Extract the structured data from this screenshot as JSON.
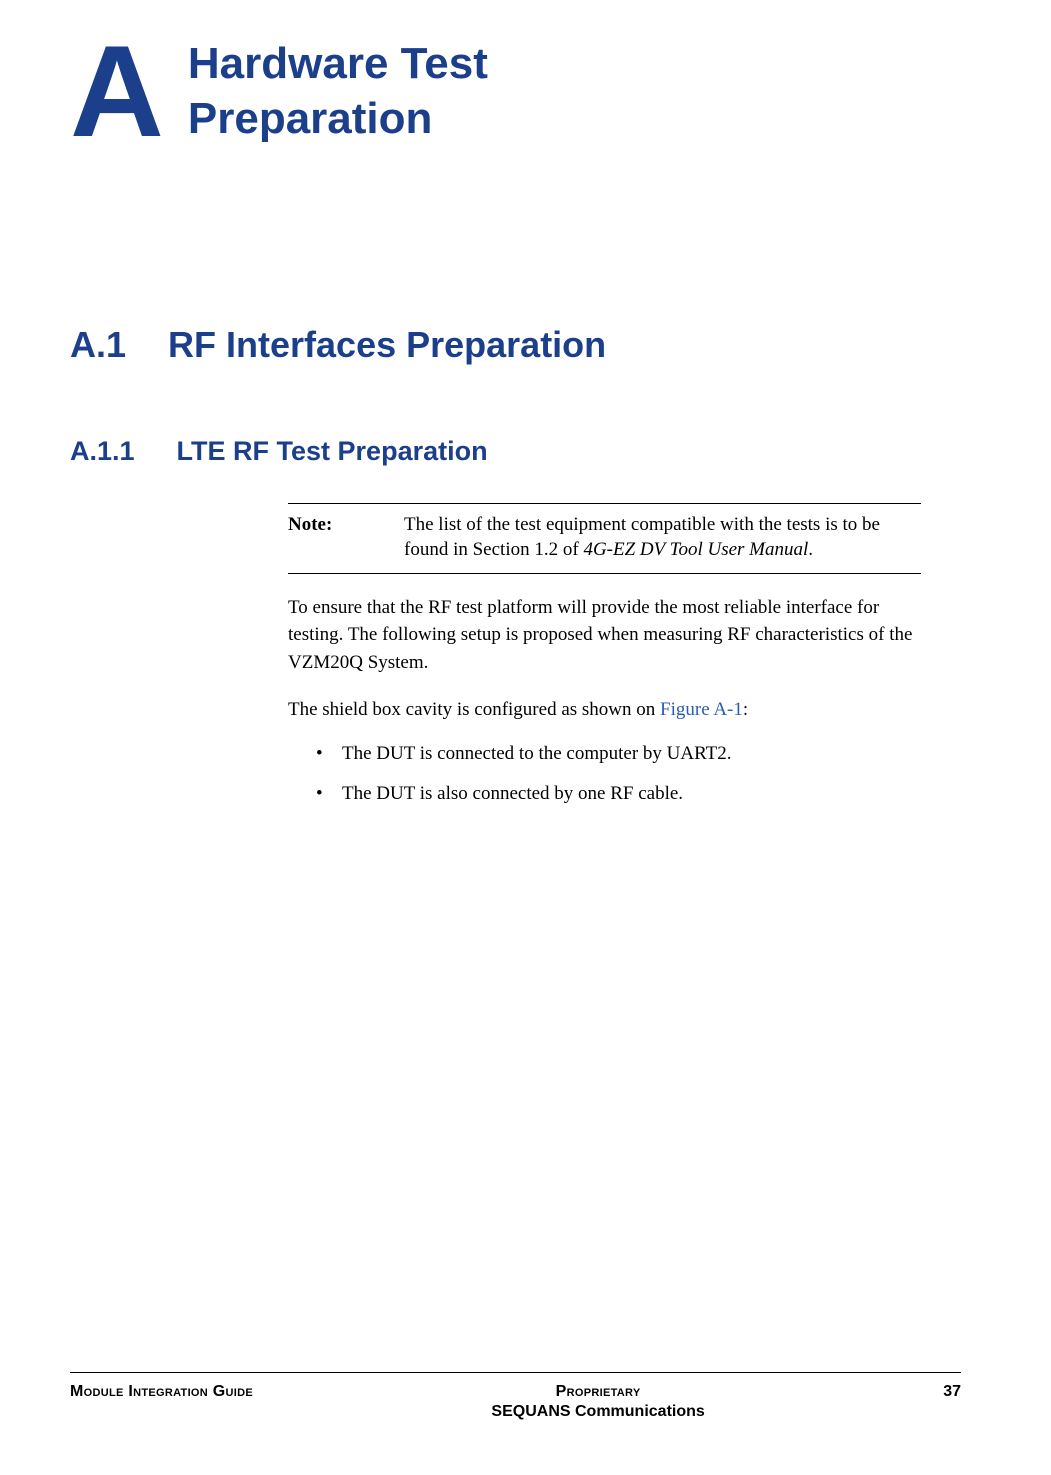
{
  "colors": {
    "heading": "#1b3f8b",
    "link": "#2a5db0",
    "text": "#000000",
    "background": "#ffffff",
    "rule": "#000000"
  },
  "typography": {
    "heading_font": "Verdana",
    "body_font": "Georgia",
    "footer_font": "Arial",
    "appendix_letter_size_pt": 98,
    "appendix_title_size_pt": 33,
    "h1_size_pt": 27,
    "h2_size_pt": 20,
    "body_size_pt": 14,
    "footer_size_pt": 12
  },
  "header": {
    "appendix_letter": "A",
    "appendix_title_line1": "Hardware Test",
    "appendix_title_line2": "Preparation"
  },
  "section_h1": {
    "number": "A.1",
    "title": "RF Interfaces Preparation"
  },
  "section_h2": {
    "number": "A.1.1",
    "title": "LTE RF Test Preparation"
  },
  "note": {
    "label": "Note:",
    "text_before_italic": "The list of the test equipment compatible with the tests is to be found in Section 1.2 of ",
    "italic": "4G-EZ DV Tool User Manual",
    "text_after_italic": "."
  },
  "paragraphs": {
    "p1": "To ensure that the RF test platform will provide the most reliable interface for testing. The following setup is proposed when measuring RF characteristics of the VZM20Q System.",
    "p2_before_link": "The shield box cavity is configured as shown on ",
    "p2_link": "Figure A-1",
    "p2_after_link": ":"
  },
  "bullets": [
    "The DUT is connected to the computer by UART2.",
    "The DUT is also connected by one RF cable."
  ],
  "footer": {
    "left": "Module Integration Guide",
    "center_top": "Proprietary",
    "center_bottom": "SEQUANS Communications",
    "page_number": "37"
  }
}
